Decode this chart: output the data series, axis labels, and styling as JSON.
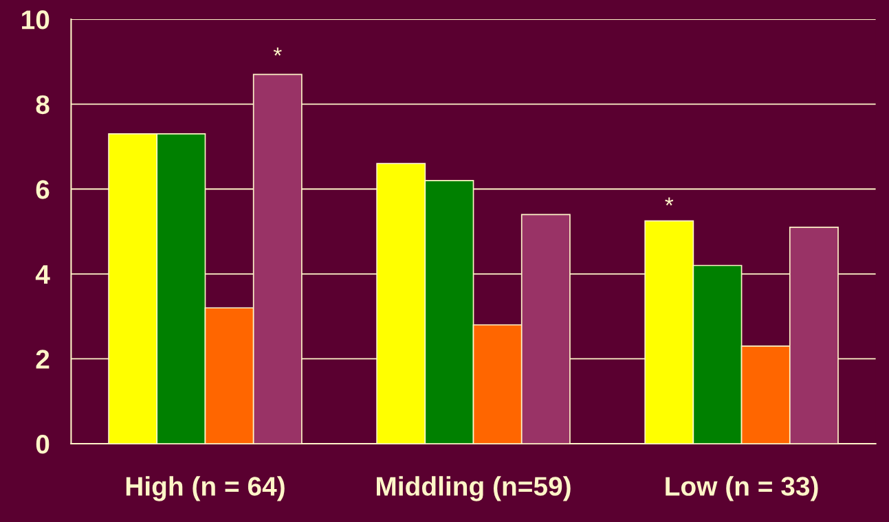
{
  "chart_data": {
    "type": "bar",
    "categories": [
      "High (n = 64)",
      "Middling (n=59)",
      "Low (n = 33)"
    ],
    "series": [
      {
        "color": "#ffff00",
        "values": [
          7.3,
          6.6,
          5.25
        ]
      },
      {
        "color": "#008000",
        "values": [
          7.3,
          6.2,
          4.2
        ]
      },
      {
        "color": "#ff6600",
        "values": [
          3.2,
          2.8,
          2.3
        ]
      },
      {
        "color": "#993366",
        "values": [
          8.7,
          5.4,
          5.1
        ]
      }
    ],
    "ylim": [
      0,
      10
    ],
    "yticks": [
      0,
      2,
      4,
      6,
      8,
      10
    ],
    "grid": "y",
    "legend": false,
    "annotations": [
      "*",
      "*"
    ]
  }
}
